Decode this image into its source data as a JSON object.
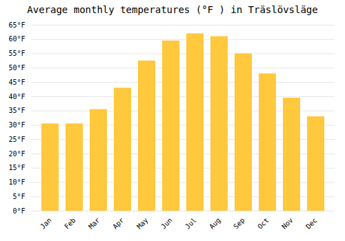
{
  "chart_data": {
    "type": "bar",
    "title": "Average monthly temperatures (°F ) in Träslövsläge",
    "categories": [
      "Jan",
      "Feb",
      "Mar",
      "Apr",
      "May",
      "Jun",
      "Jul",
      "Aug",
      "Sep",
      "Oct",
      "Nov",
      "Dec"
    ],
    "values": [
      30.5,
      30.5,
      35.5,
      43.0,
      52.5,
      59.5,
      62.0,
      61.0,
      55.0,
      48.0,
      39.5,
      33.0
    ],
    "color": "#FFC83D",
    "ylim": [
      0,
      65
    ],
    "yticks": [
      {
        "value": 0,
        "label": "0°F"
      },
      {
        "value": 5,
        "label": "5°F"
      },
      {
        "value": 10,
        "label": "10°F"
      },
      {
        "value": 15,
        "label": "15°F"
      },
      {
        "value": 20,
        "label": "20°F"
      },
      {
        "value": 25,
        "label": "25°F"
      },
      {
        "value": 30,
        "label": "30°F"
      },
      {
        "value": 35,
        "label": "35°F"
      },
      {
        "value": 40,
        "label": "40°F"
      },
      {
        "value": 45,
        "label": "45°F"
      },
      {
        "value": 50,
        "label": "50°F"
      },
      {
        "value": 55,
        "label": "55°F"
      },
      {
        "value": 60,
        "label": "60°F"
      },
      {
        "value": 65,
        "label": "65°F"
      }
    ],
    "grid": true
  }
}
